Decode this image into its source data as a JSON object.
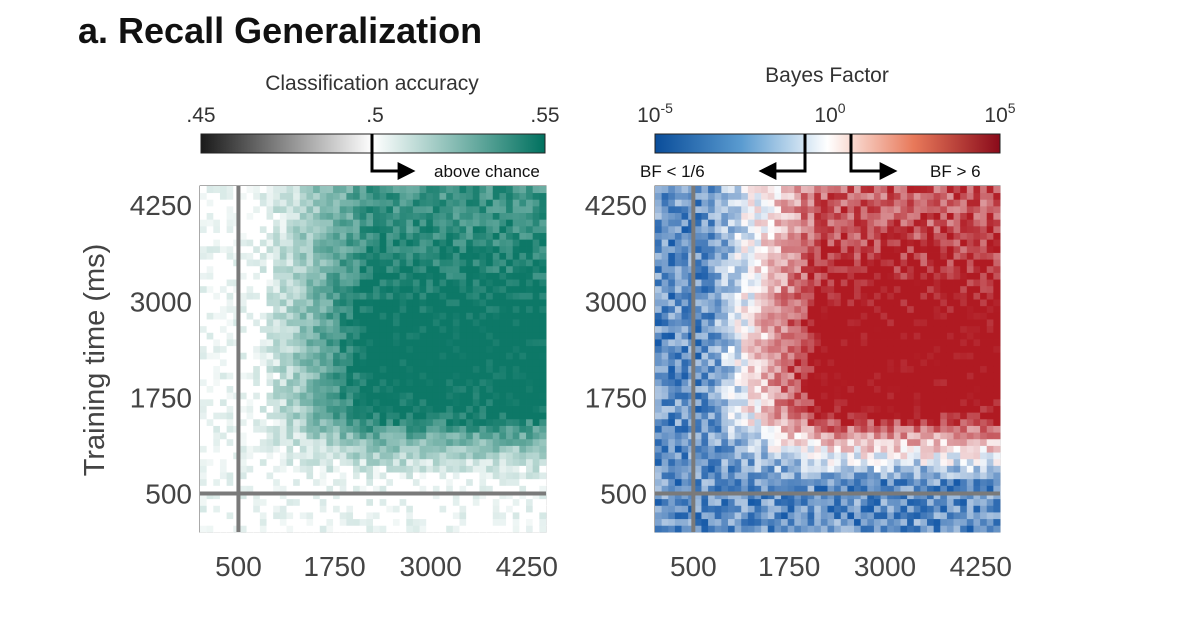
{
  "title": "a. Recall Generalization",
  "chart_data": [
    {
      "type": "heatmap",
      "name": "classification-accuracy",
      "colorbar": {
        "label": "Classification accuracy",
        "ticks": [
          ".45",
          ".5",
          ".55"
        ],
        "range": [
          0.45,
          0.55
        ],
        "colors": [
          "#1a1a1a",
          "#ffffff",
          "#00715f"
        ],
        "annotation": "above chance"
      },
      "ylabel": "Training time (ms)",
      "xlabel": "",
      "xticks": [
        500,
        1750,
        3000,
        4250
      ],
      "yticks": [
        500,
        1750,
        3000,
        4250
      ],
      "xlim": [
        0,
        4500
      ],
      "ylim": [
        0,
        4500
      ],
      "reference_lines": {
        "x": 500,
        "y": 500
      }
    },
    {
      "type": "heatmap",
      "name": "bayes-factor",
      "colorbar": {
        "label": "Bayes Factor",
        "ticks": [
          {
            "base": "10",
            "exp": "-5"
          },
          {
            "base": "10",
            "exp": "0"
          },
          {
            "base": "10",
            "exp": "5"
          }
        ],
        "range": [
          -5,
          5
        ],
        "colors": [
          "#0a4d9a",
          "#ffffff",
          "#8a0a1a"
        ],
        "annotation_left": "BF < 1/6",
        "annotation_right": "BF > 6"
      },
      "xticks": [
        500,
        1750,
        3000,
        4250
      ],
      "yticks": [
        500,
        1750,
        3000,
        4250
      ],
      "xlim": [
        0,
        4500
      ],
      "ylim": [
        0,
        4500
      ],
      "reference_lines": {
        "x": 500,
        "y": 500
      }
    }
  ]
}
